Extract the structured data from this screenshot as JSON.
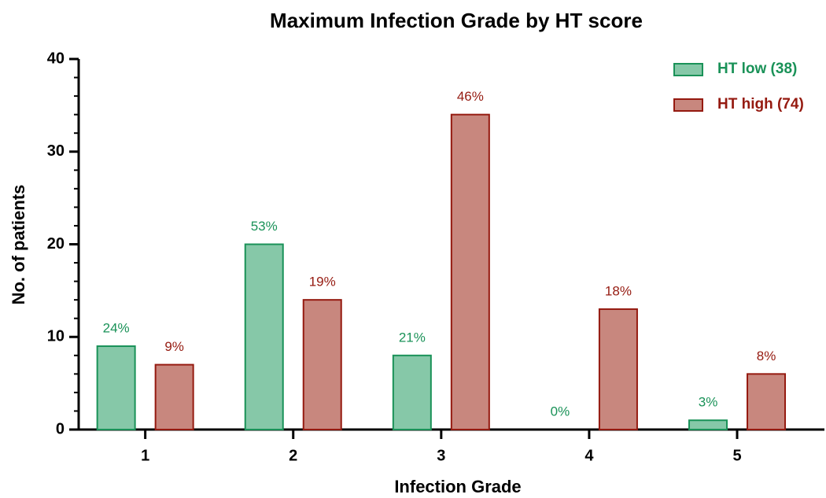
{
  "chart_data": {
    "type": "bar",
    "title": "Maximum Infection Grade by HT score",
    "x_label": "Infection Grade",
    "y_label": "No. of patients",
    "categories": [
      "1",
      "2",
      "3",
      "4",
      "5"
    ],
    "series": [
      {
        "name": "HT low (38)",
        "color": "#86c8a8",
        "edge_color": "#1a9258",
        "text_color": "#1a9258",
        "values": [
          9,
          20,
          8,
          0,
          1
        ],
        "percent_labels": [
          "24%",
          "53%",
          "21%",
          "0%",
          "3%"
        ]
      },
      {
        "name": "HT high (74)",
        "color": "#c8877e",
        "edge_color": "#951a10",
        "text_color": "#951a10",
        "values": [
          7,
          14,
          34,
          13,
          6
        ],
        "percent_labels": [
          "9%",
          "19%",
          "46%",
          "18%",
          "8%"
        ]
      }
    ],
    "ylim": [
      0,
      40
    ],
    "yticks": [
      0,
      10,
      20,
      30,
      40
    ],
    "legend": "upper right",
    "grid": false
  }
}
